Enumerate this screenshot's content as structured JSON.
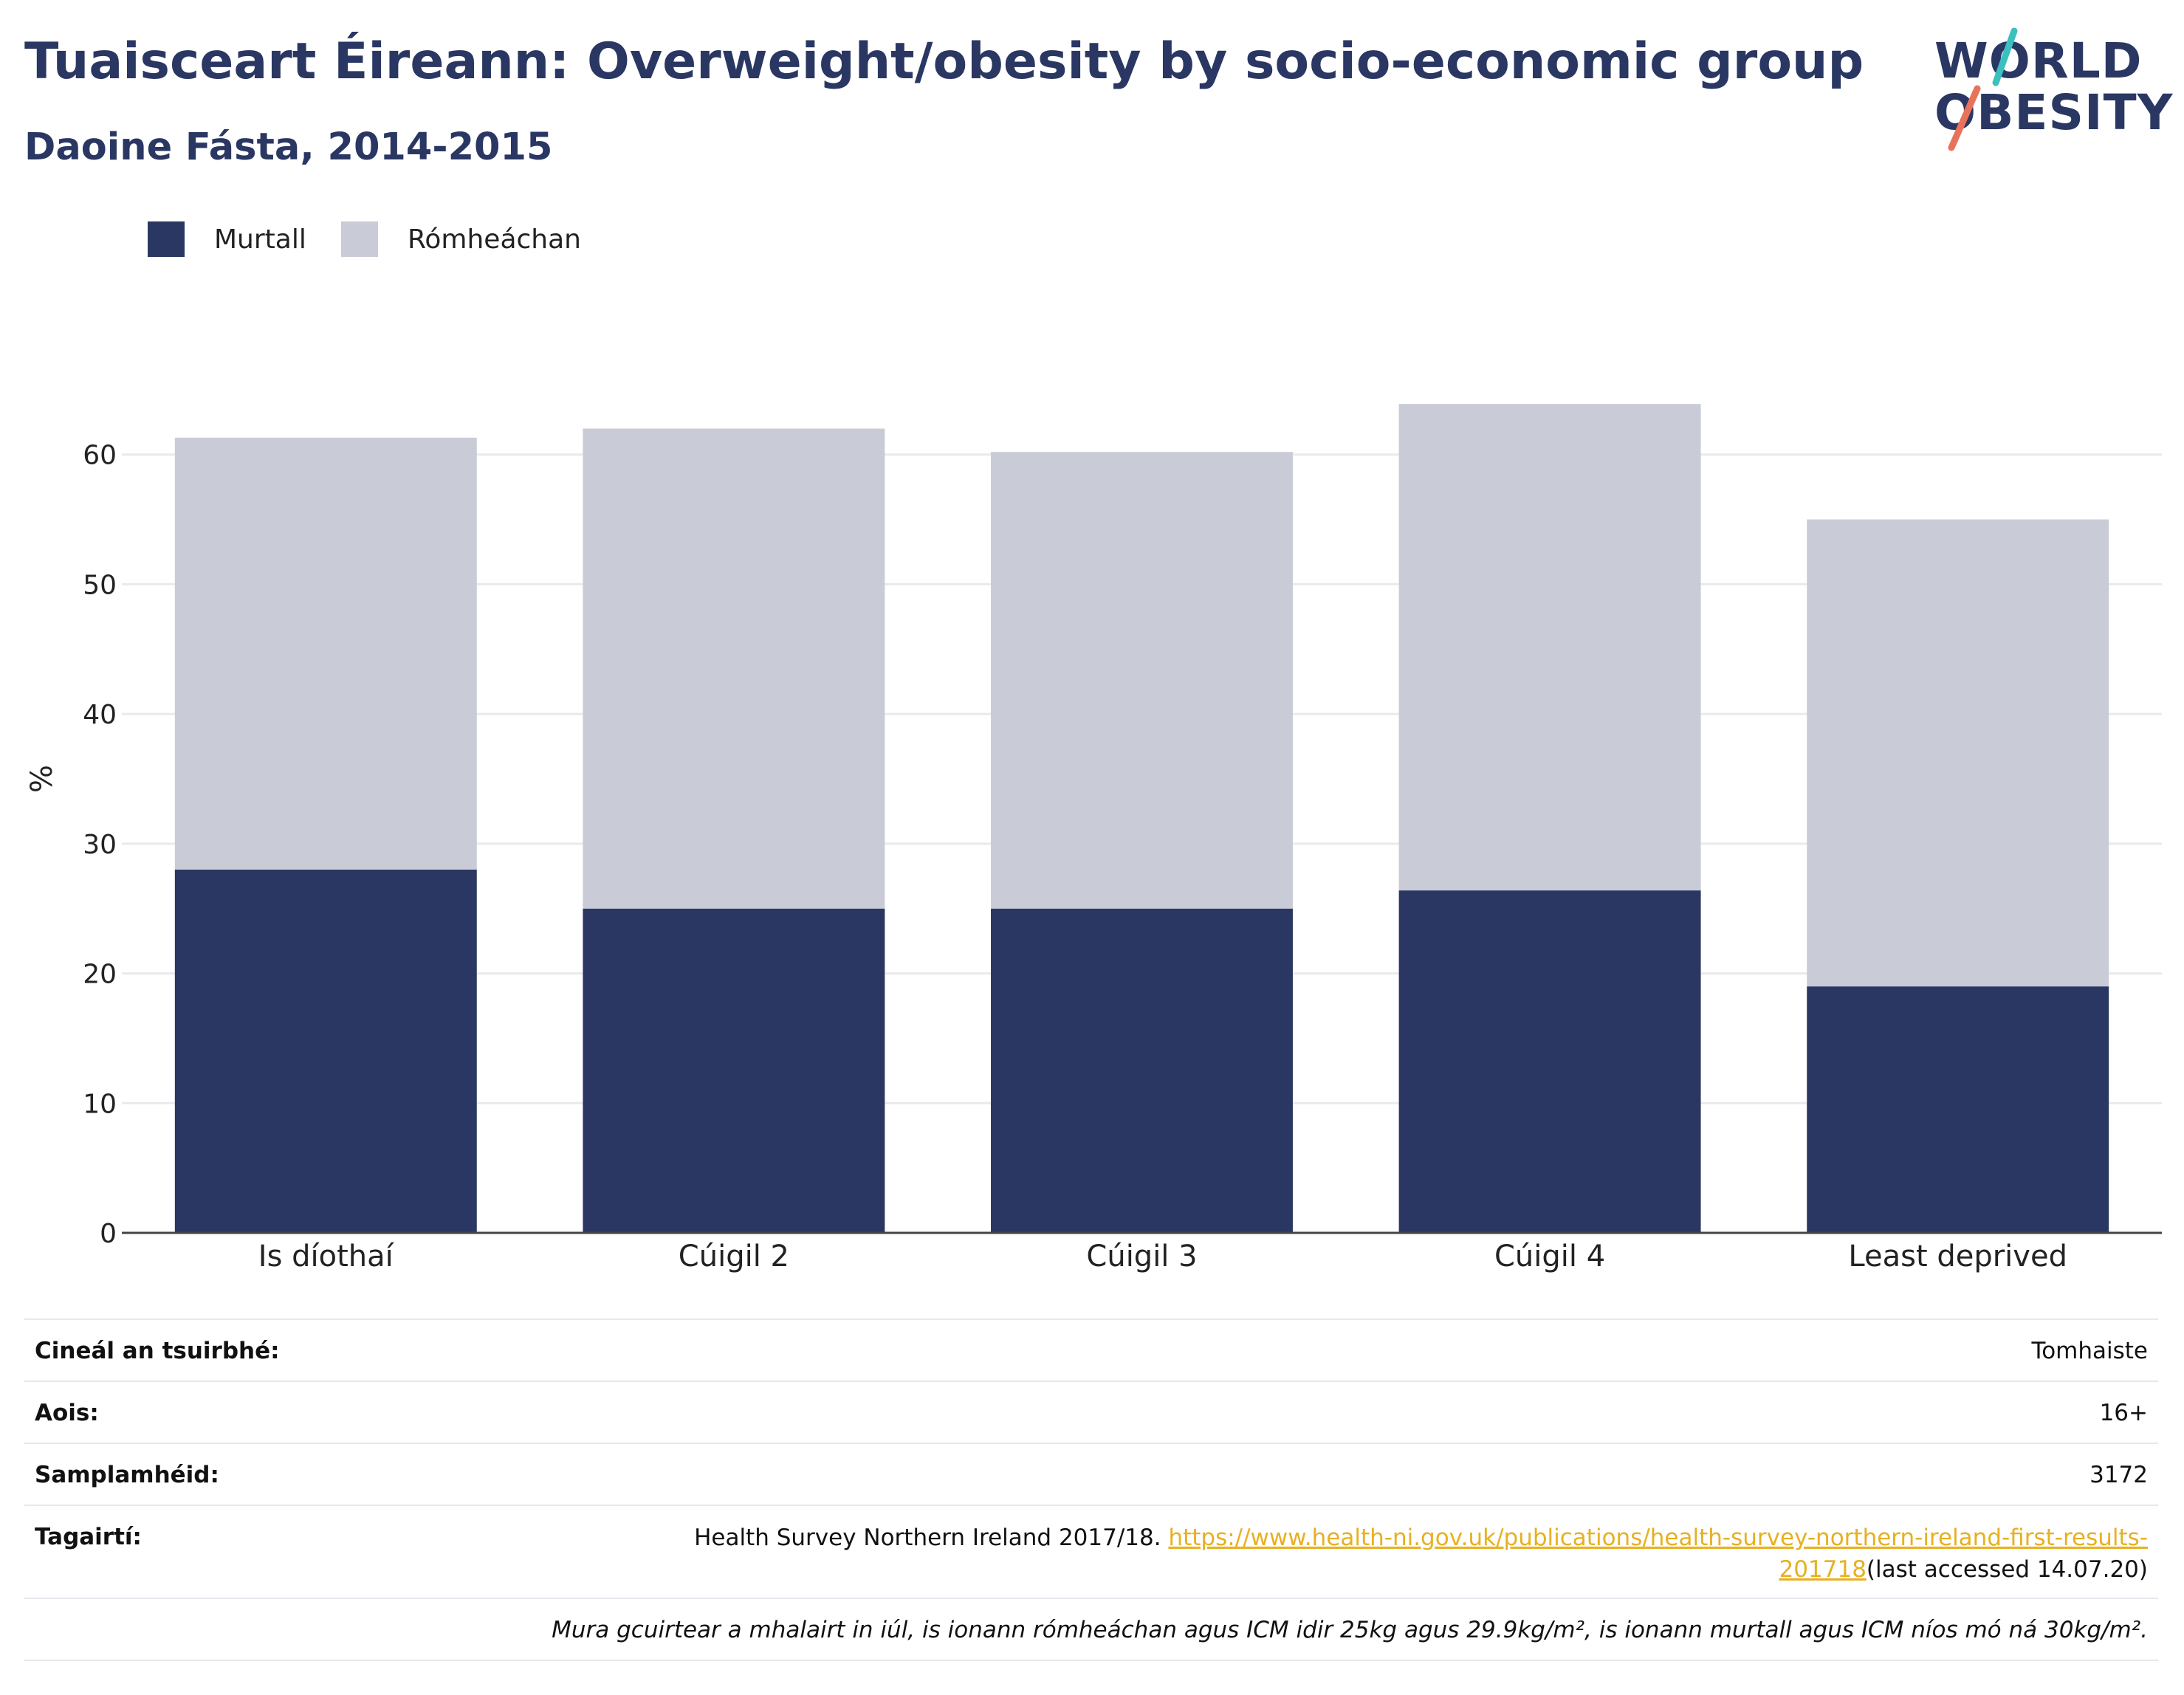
{
  "header": {
    "title": "Tuaisceart Éireann: Overweight/obesity by socio-economic group",
    "subtitle": "Daoine Fásta, 2014-2015"
  },
  "logo": {
    "line1": "WORLD",
    "line2": "OBESITY",
    "slash_colors": [
      "#3bbfbf",
      "#e8735a"
    ]
  },
  "legend": {
    "items": [
      {
        "label": "Murtall",
        "color": "#2a3763"
      },
      {
        "label": "Rómheáchan",
        "color": "#c9cbd6"
      }
    ]
  },
  "chart_data": {
    "type": "bar",
    "stacked": true,
    "categories": [
      "Is díothaí",
      "Cúigil 2",
      "Cúigil 3",
      "Cúigil 4",
      "Least deprived"
    ],
    "series": [
      {
        "name": "Murtall",
        "color": "#2a3763",
        "values": [
          28,
          25,
          25,
          26.4,
          19
        ]
      },
      {
        "name": "Rómheáchan",
        "color": "#c9cbd6",
        "values": [
          33.3,
          37,
          35.2,
          37.5,
          36
        ]
      }
    ],
    "ylabel": "%",
    "ylim": [
      0,
      70
    ],
    "yticks": [
      0,
      10,
      20,
      30,
      40,
      50,
      60
    ],
    "grid": true,
    "legend_position": "top-left"
  },
  "info": {
    "survey_type_label": "Cineál an tsuirbhé:",
    "survey_type_value": "Tomhaiste",
    "age_label": "Aois:",
    "age_value": "16+",
    "sample_label": "Samplamhéid:",
    "sample_value": "3172",
    "ref_label": "Tagairtí:",
    "ref_text": "Health Survey Northern Ireland 2017/18. ",
    "ref_link": "https://www.health-ni.gov.uk/publications/health-survey-northern-ireland-first-results-201718",
    "ref_suffix": "(last accessed 14.07.20)",
    "note": "Mura gcuirtear a mhalairt in iúl, is ionann rómheáchan agus ICM idir 25kg agus 29.9kg/m², is ionann murtall agus ICM níos mó ná 30kg/m²."
  }
}
